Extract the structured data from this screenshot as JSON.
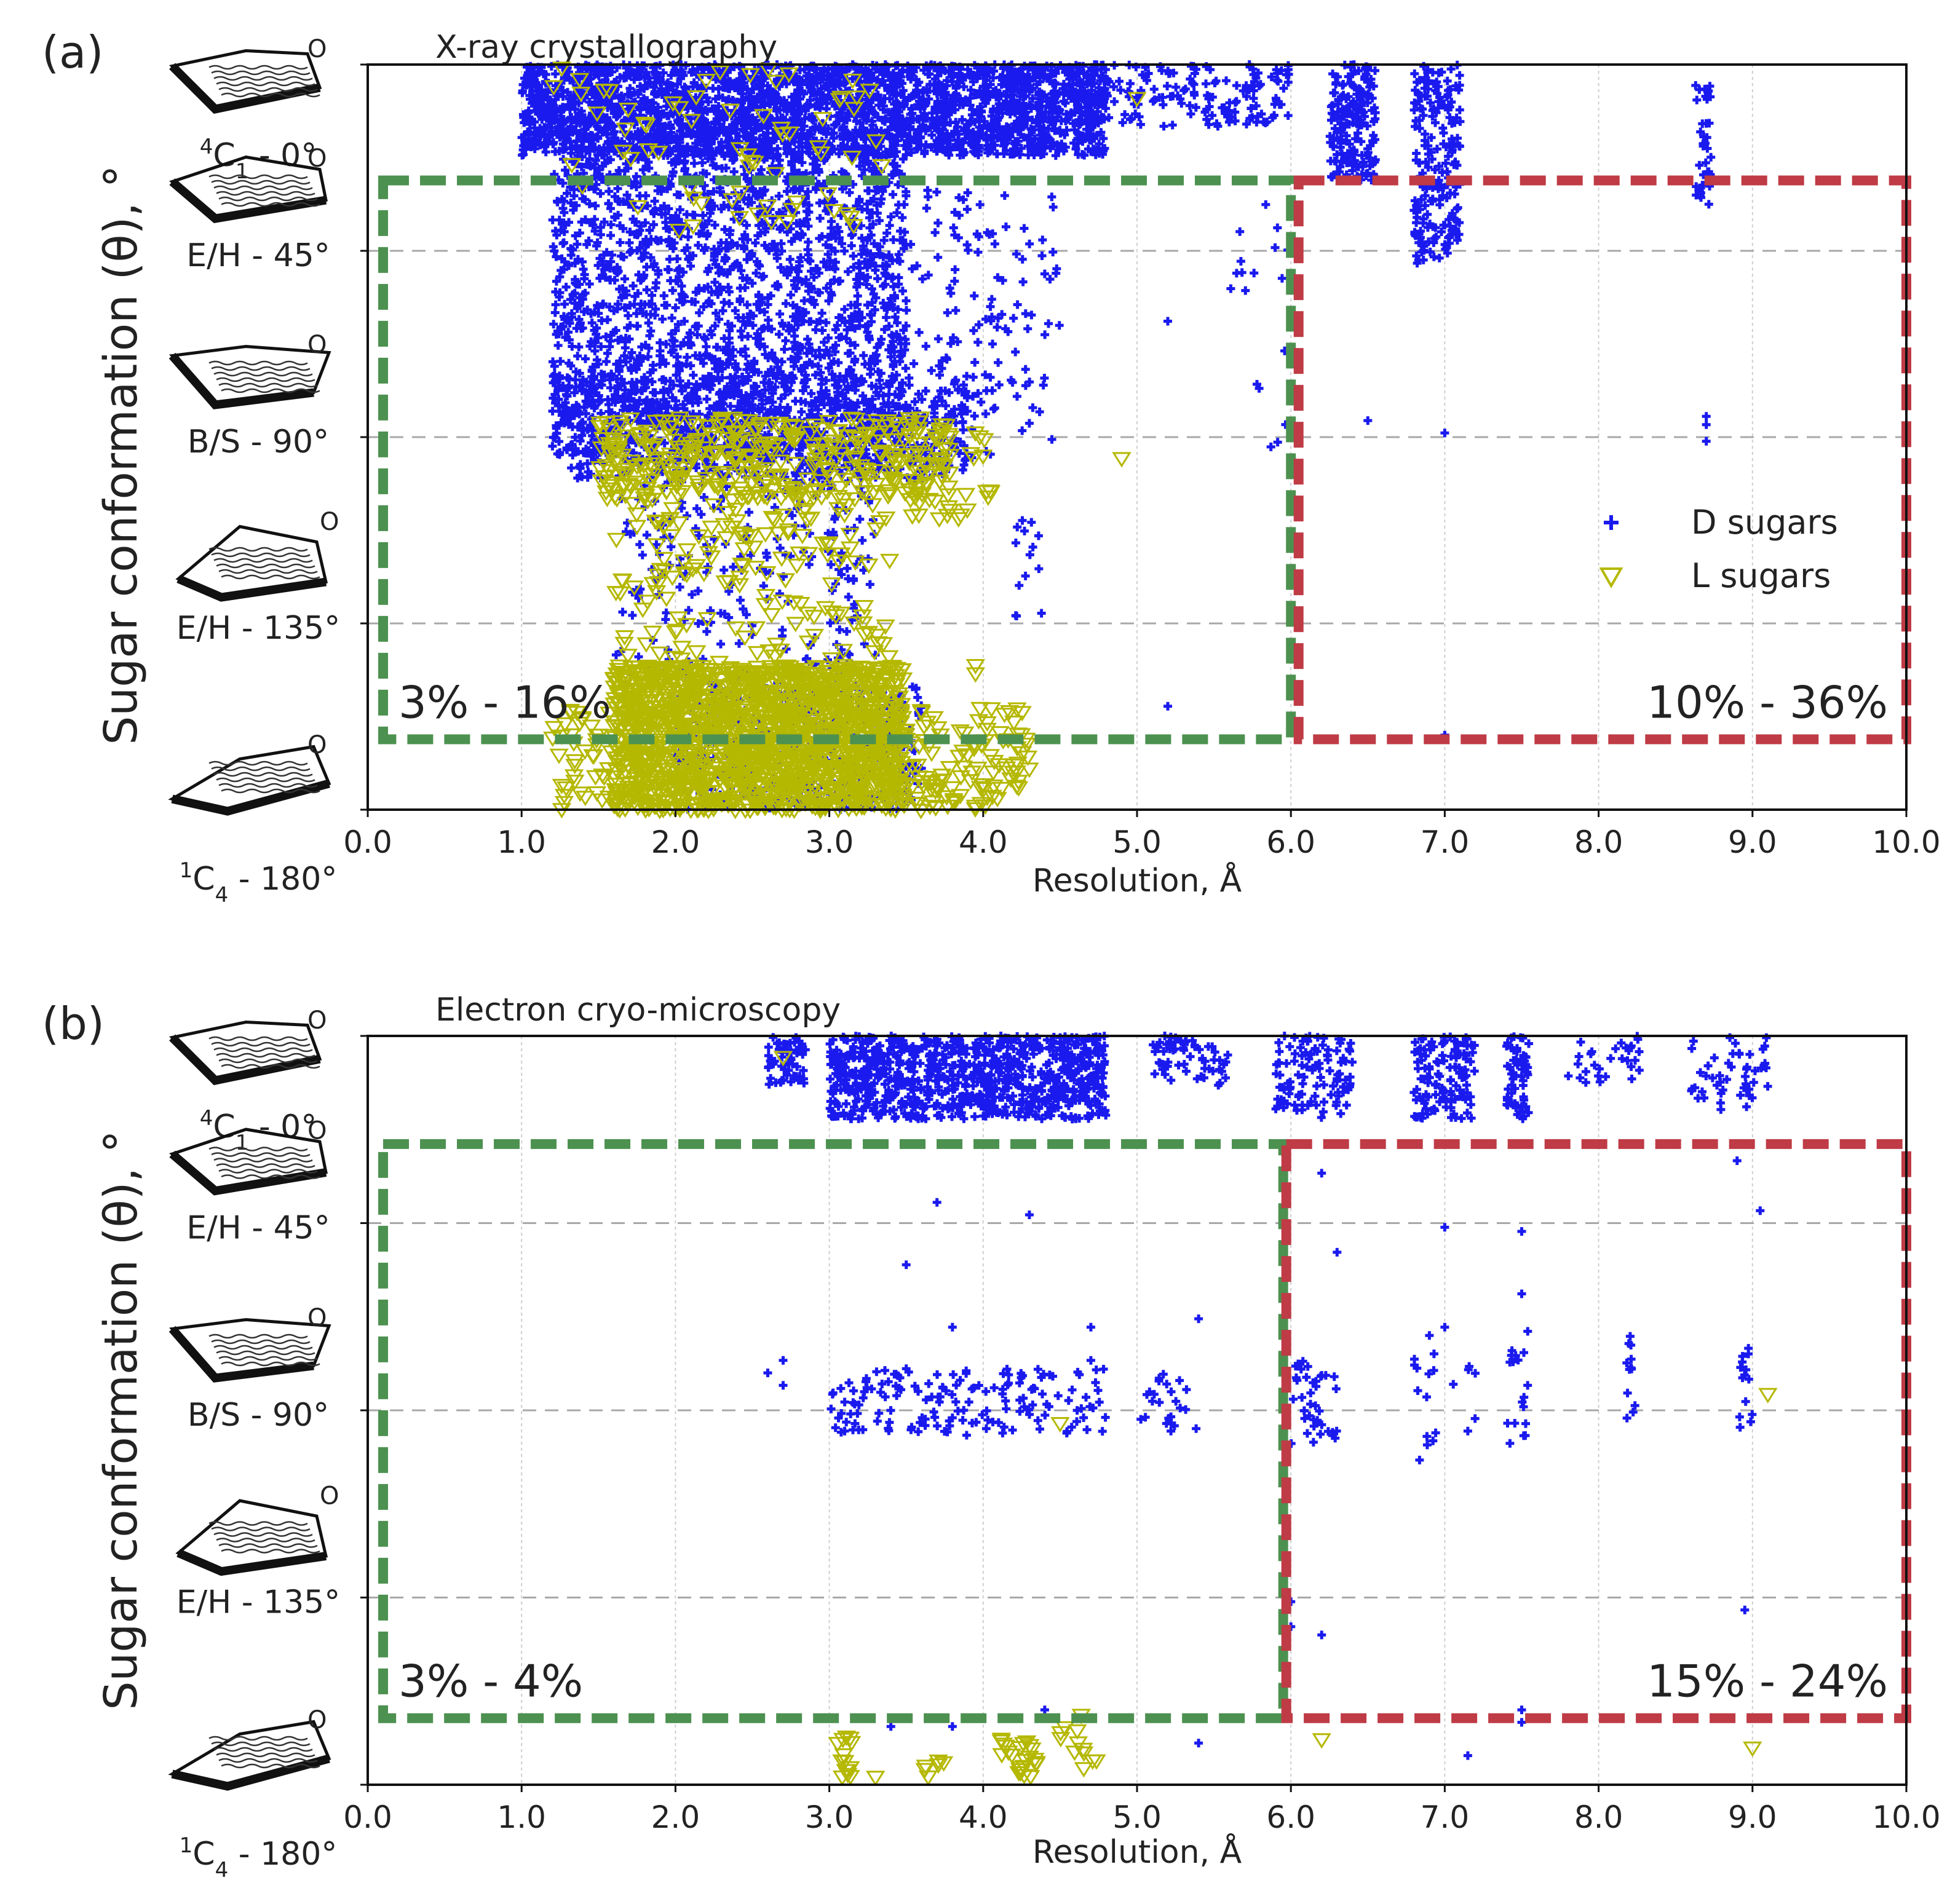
{
  "figure": {
    "background": "#ffffff"
  },
  "chart_data": [
    {
      "type": "scatter",
      "panel_label": "(a)",
      "title": "X-ray crystallography",
      "xlabel": "Resolution, Å",
      "ylabel": "Sugar conformation (θ), °",
      "xlim": [
        0,
        10
      ],
      "ylim": [
        0,
        180
      ],
      "x_ticks": [
        "0.0",
        "1.0",
        "2.0",
        "3.0",
        "4.0",
        "5.0",
        "6.0",
        "7.0",
        "8.0",
        "9.0",
        "10.0"
      ],
      "y_labels": [
        {
          "value": 0,
          "label": "C1 - 0°",
          "sup": "4",
          "sub": "1",
          "prefix": "",
          "letter": "C",
          "suffix": " - 0°"
        },
        {
          "value": 45,
          "label": "E/H - 45°",
          "sup": "",
          "sub": "",
          "prefix": "E/H - 45°",
          "letter": "",
          "suffix": ""
        },
        {
          "value": 90,
          "label": "B/S - 90°",
          "sup": "",
          "sub": "",
          "prefix": "B/S - 90°",
          "letter": "",
          "suffix": ""
        },
        {
          "value": 135,
          "label": "E/H - 135°",
          "sup": "",
          "sub": "",
          "prefix": "E/H - 135°",
          "letter": "",
          "suffix": ""
        },
        {
          "value": 180,
          "label": "C4 - 180°",
          "sup": "1",
          "sub": "4",
          "prefix": "",
          "letter": "C",
          "suffix": " - 180°"
        }
      ],
      "grid": true,
      "legend": {
        "position": "right",
        "entries": [
          "D sugars",
          "L sugars"
        ]
      },
      "series": [
        {
          "name": "D sugars",
          "marker": "plus",
          "color": "#1a1aee",
          "clusters": [
            {
              "x": [
                1.0,
                4.8
              ],
              "y": [
                0,
                22
              ],
              "n": 2600
            },
            {
              "x": [
                1.2,
                3.5
              ],
              "y": [
                20,
                95
              ],
              "n": 1900
            },
            {
              "x": [
                1.2,
                3.9
              ],
              "y": [
                75,
                100
              ],
              "n": 700
            },
            {
              "x": [
                3.4,
                4.5
              ],
              "y": [
                30,
                95
              ],
              "n": 160
            },
            {
              "x": [
                1.6,
                3.3
              ],
              "y": [
                95,
                150
              ],
              "n": 260
            },
            {
              "x": [
                2.0,
                3.6
              ],
              "y": [
                150,
                180
              ],
              "n": 420
            },
            {
              "x": [
                4.8,
                6.0
              ],
              "y": [
                0,
                15
              ],
              "n": 150
            },
            {
              "x": [
                6.25,
                6.55
              ],
              "y": [
                0,
                28
              ],
              "n": 180
            },
            {
              "x": [
                6.8,
                7.1
              ],
              "y": [
                0,
                48
              ],
              "n": 200
            },
            {
              "x": [
                8.63,
                8.73
              ],
              "y": [
                5,
                35
              ],
              "n": 40
            },
            {
              "x": [
                5.6,
                6.0
              ],
              "y": [
                30,
                95
              ],
              "n": 18
            },
            {
              "x": [
                4.2,
                4.4
              ],
              "y": [
                110,
                140
              ],
              "n": 14
            }
          ],
          "points": [
            [
              6.5,
              86
            ],
            [
              7.0,
              89
            ],
            [
              8.7,
              87
            ],
            [
              8.7,
              91
            ],
            [
              8.7,
              85
            ],
            [
              5.2,
              62
            ],
            [
              5.2,
              155
            ],
            [
              7.0,
              162
            ],
            [
              5.0,
              8
            ]
          ]
        },
        {
          "name": "L sugars",
          "marker": "triangle-down",
          "color": "#b5b800",
          "clusters": [
            {
              "x": [
                1.6,
                3.5
              ],
              "y": [
                145,
                180
              ],
              "n": 1400
            },
            {
              "x": [
                1.2,
                4.3
              ],
              "y": [
                155,
                180
              ],
              "n": 350
            },
            {
              "x": [
                1.5,
                3.8
              ],
              "y": [
                85,
                105
              ],
              "n": 360
            },
            {
              "x": [
                1.6,
                3.4
              ],
              "y": [
                105,
                150
              ],
              "n": 180
            },
            {
              "x": [
                1.2,
                3.4
              ],
              "y": [
                0,
                40
              ],
              "n": 70
            },
            {
              "x": [
                3.5,
                4.1
              ],
              "y": [
                85,
                110
              ],
              "n": 40
            }
          ],
          "points": [
            [
              4.9,
              95
            ],
            [
              5.0,
              8
            ],
            [
              3.95,
              145
            ],
            [
              3.95,
              147
            ],
            [
              4.3,
              170
            ]
          ]
        }
      ],
      "regions": [
        {
          "x": [
            0.1,
            6.0
          ],
          "y": [
            28,
            163
          ],
          "color": "#4d9150",
          "label": "3% - 16%",
          "label_pos": "bottom-left"
        },
        {
          "x": [
            6.05,
            10.0
          ],
          "y": [
            28,
            163
          ],
          "color": "#bf3b45",
          "label": "10% - 36%",
          "label_pos": "bottom-right"
        }
      ]
    },
    {
      "type": "scatter",
      "panel_label": "(b)",
      "title": "Electron cryo-microscopy",
      "xlabel": "Resolution, Å",
      "ylabel": "Sugar conformation (θ), °",
      "xlim": [
        0,
        10
      ],
      "ylim": [
        0,
        180
      ],
      "x_ticks": [
        "0.0",
        "1.0",
        "2.0",
        "3.0",
        "4.0",
        "5.0",
        "6.0",
        "7.0",
        "8.0",
        "9.0",
        "10.0"
      ],
      "y_labels": [
        {
          "value": 0,
          "label": "C1 - 0°",
          "sup": "4",
          "sub": "1",
          "prefix": "",
          "letter": "C",
          "suffix": " - 0°"
        },
        {
          "value": 45,
          "label": "E/H - 45°",
          "sup": "",
          "sub": "",
          "prefix": "E/H - 45°",
          "letter": "",
          "suffix": ""
        },
        {
          "value": 90,
          "label": "B/S - 90°",
          "sup": "",
          "sub": "",
          "prefix": "B/S - 90°",
          "letter": "",
          "suffix": ""
        },
        {
          "value": 135,
          "label": "E/H - 135°",
          "sup": "",
          "sub": "",
          "prefix": "E/H - 135°",
          "letter": "",
          "suffix": ""
        },
        {
          "value": 180,
          "label": "C4 - 180°",
          "sup": "1",
          "sub": "4",
          "prefix": "",
          "letter": "C",
          "suffix": " - 180°"
        }
      ],
      "grid": true,
      "legend": null,
      "series": [
        {
          "name": "D sugars",
          "marker": "plus",
          "color": "#1a1aee",
          "clusters": [
            {
              "x": [
                2.6,
                2.85
              ],
              "y": [
                0,
                12
              ],
              "n": 60
            },
            {
              "x": [
                3.0,
                4.8
              ],
              "y": [
                0,
                20
              ],
              "n": 900
            },
            {
              "x": [
                5.1,
                5.6
              ],
              "y": [
                0,
                12
              ],
              "n": 60
            },
            {
              "x": [
                5.9,
                6.4
              ],
              "y": [
                0,
                20
              ],
              "n": 110
            },
            {
              "x": [
                6.8,
                7.2
              ],
              "y": [
                0,
                20
              ],
              "n": 120
            },
            {
              "x": [
                7.4,
                7.55
              ],
              "y": [
                0,
                20
              ],
              "n": 60
            },
            {
              "x": [
                7.8,
                8.3
              ],
              "y": [
                0,
                12
              ],
              "n": 30
            },
            {
              "x": [
                8.6,
                9.1
              ],
              "y": [
                0,
                18
              ],
              "n": 50
            },
            {
              "x": [
                3.0,
                4.8
              ],
              "y": [
                80,
                96
              ],
              "n": 160
            },
            {
              "x": [
                5.0,
                5.4
              ],
              "y": [
                80,
                95
              ],
              "n": 24
            },
            {
              "x": [
                6.0,
                6.3
              ],
              "y": [
                78,
                98
              ],
              "n": 40
            },
            {
              "x": [
                6.8,
                7.2
              ],
              "y": [
                75,
                102
              ],
              "n": 18
            },
            {
              "x": [
                7.4,
                7.55
              ],
              "y": [
                70,
                100
              ],
              "n": 18
            },
            {
              "x": [
                8.18,
                8.24
              ],
              "y": [
                72,
                93
              ],
              "n": 12
            },
            {
              "x": [
                8.9,
                9.0
              ],
              "y": [
                75,
                95
              ],
              "n": 14
            }
          ],
          "points": [
            [
              2.6,
              81
            ],
            [
              2.7,
              78
            ],
            [
              2.7,
              84
            ],
            [
              3.1,
              88
            ],
            [
              3.1,
              95
            ],
            [
              3.5,
              80
            ],
            [
              3.8,
              70
            ],
            [
              4.3,
              43
            ],
            [
              4.7,
              70
            ],
            [
              4.7,
              78
            ],
            [
              5.4,
              68
            ],
            [
              5.4,
              170
            ],
            [
              6.0,
              142
            ],
            [
              6.2,
              144
            ],
            [
              6.2,
              33
            ],
            [
              6.3,
              52
            ],
            [
              6.9,
              72
            ],
            [
              7.0,
              70
            ],
            [
              7.0,
              46
            ],
            [
              7.15,
              95
            ],
            [
              7.5,
              47
            ],
            [
              7.5,
              62
            ],
            [
              7.5,
              162
            ],
            [
              7.5,
              165
            ],
            [
              7.15,
              173
            ],
            [
              6.0,
              136
            ],
            [
              8.9,
              30
            ],
            [
              8.95,
              138
            ],
            [
              9.05,
              42
            ],
            [
              3.4,
              166
            ],
            [
              3.8,
              166
            ],
            [
              4.4,
              162
            ],
            [
              3.7,
              40
            ],
            [
              3.5,
              55
            ]
          ]
        },
        {
          "name": "L sugars",
          "marker": "triangle-down",
          "color": "#b5b800",
          "clusters": [
            {
              "x": [
                3.05,
                3.15
              ],
              "y": [
                167,
                178
              ],
              "n": 14
            },
            {
              "x": [
                3.6,
                3.75
              ],
              "y": [
                170,
                178
              ],
              "n": 6
            },
            {
              "x": [
                4.1,
                4.35
              ],
              "y": [
                168,
                178
              ],
              "n": 24
            },
            {
              "x": [
                4.5,
                4.75
              ],
              "y": [
                163,
                178
              ],
              "n": 12
            }
          ],
          "points": [
            [
              2.7,
              5
            ],
            [
              3.3,
              178
            ],
            [
              4.5,
              93
            ],
            [
              6.2,
              169
            ],
            [
              9.0,
              171
            ],
            [
              9.1,
              86
            ]
          ]
        }
      ],
      "regions": [
        {
          "x": [
            0.1,
            5.95
          ],
          "y": [
            26,
            164
          ],
          "color": "#4d9150",
          "label": "3% - 4%",
          "label_pos": "bottom-left"
        },
        {
          "x": [
            5.97,
            10.0
          ],
          "y": [
            26,
            164
          ],
          "color": "#bf3b45",
          "label": "15% - 24%",
          "label_pos": "bottom-right"
        }
      ]
    }
  ]
}
